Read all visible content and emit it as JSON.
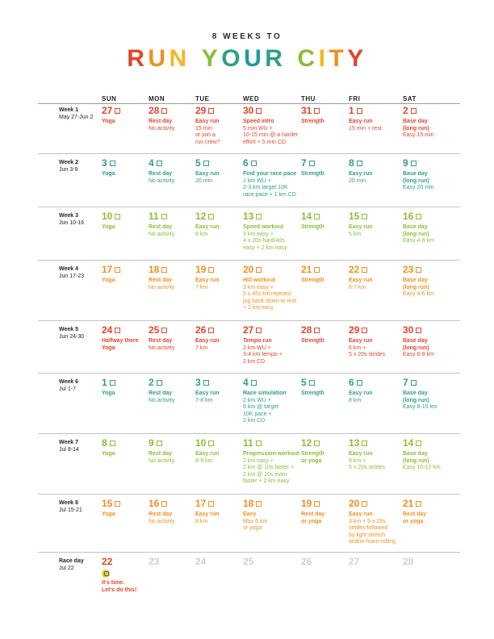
{
  "header": {
    "subtitle": "8 WEEKS TO",
    "title_words": [
      [
        {
          "c": "R",
          "color": "#e2452c"
        },
        {
          "c": "U",
          "color": "#f08f1f"
        },
        {
          "c": "N",
          "color": "#f2b825"
        }
      ],
      [
        {
          "c": "Y",
          "color": "#8bbd35"
        },
        {
          "c": "O",
          "color": "#2f9e88"
        },
        {
          "c": "U",
          "color": "#1e9aa0"
        },
        {
          "c": "R",
          "color": "#2f9e88"
        }
      ],
      [
        {
          "c": "C",
          "color": "#8bbd35"
        },
        {
          "c": "I",
          "color": "#f2b825"
        },
        {
          "c": "T",
          "color": "#f08f1f"
        },
        {
          "c": "Y",
          "color": "#e2452c"
        }
      ]
    ]
  },
  "days": [
    "SUN",
    "MON",
    "TUE",
    "WED",
    "THU",
    "FRI",
    "SAT"
  ],
  "weeks": [
    {
      "label": "Week 1",
      "dates": "May 27-Jun 2",
      "color": "#e2452c",
      "cells": [
        {
          "num": "27",
          "act": "Yoga",
          "det": ""
        },
        {
          "num": "28",
          "act": "Rest day",
          "det": "No activity"
        },
        {
          "num": "29",
          "act": "Easy run",
          "det": "15 min\nor join a\nrun crew?"
        },
        {
          "num": "30",
          "act": "Speed intro",
          "det": "5 min WU +\n10-15 min @ a harder\neffort + 5 min CD"
        },
        {
          "num": "31",
          "act": "Strength",
          "det": ""
        },
        {
          "num": "1",
          "act": "Easy run",
          "det": "15 min + rest"
        },
        {
          "num": "2",
          "act": "Base day\n(long run)",
          "det": "Easy 15 min"
        }
      ]
    },
    {
      "label": "Week 2",
      "dates": "Jun 3-9",
      "color": "#2f9e88",
      "cells": [
        {
          "num": "3",
          "act": "Yoga",
          "det": ""
        },
        {
          "num": "4",
          "act": "Rest day",
          "det": "No activity"
        },
        {
          "num": "5",
          "act": "Easy run",
          "det": "20 min"
        },
        {
          "num": "6",
          "act": "Find your race pace",
          "det": "1 km WU +\n2-3 km target 10K\nrace pace + 1 km CD"
        },
        {
          "num": "7",
          "act": "Strength",
          "det": ""
        },
        {
          "num": "8",
          "act": "Easy run",
          "det": "20 min"
        },
        {
          "num": "9",
          "act": "Base day\n(long run)",
          "det": "Easy 20 min"
        }
      ]
    },
    {
      "label": "Week 3",
      "dates": "Jun 10-16",
      "color": "#8bbd35",
      "cells": [
        {
          "num": "10",
          "act": "Yoga",
          "det": ""
        },
        {
          "num": "11",
          "act": "Rest day",
          "det": "No activity"
        },
        {
          "num": "12",
          "act": "Easy run",
          "det": "6 km"
        },
        {
          "num": "13",
          "act": "Speed workout",
          "det": "3 km easy +\n4 x 20s hard/40s\neasy + 2 km easy"
        },
        {
          "num": "14",
          "act": "Strength",
          "det": ""
        },
        {
          "num": "15",
          "act": "Easy run",
          "det": "5 km"
        },
        {
          "num": "16",
          "act": "Base day\n(long run)",
          "det": "Easy 4-6 km"
        }
      ]
    },
    {
      "label": "Week 4",
      "dates": "Jun 17-23",
      "color": "#f08f1f",
      "cells": [
        {
          "num": "17",
          "act": "Yoga",
          "det": ""
        },
        {
          "num": "18",
          "act": "Rest day",
          "det": "No activity"
        },
        {
          "num": "19",
          "act": "Easy run",
          "det": "7 km"
        },
        {
          "num": "20",
          "act": "Hill workout",
          "det": "3 km easy +\n5 x 45s hill repeats/\njog back down to rest\n+ 2 km easy"
        },
        {
          "num": "21",
          "act": "Strength",
          "det": ""
        },
        {
          "num": "22",
          "act": "Easy run",
          "det": "6-7 km"
        },
        {
          "num": "23",
          "act": "Base day\n(long run)",
          "det": "Easy 4-6 km"
        }
      ]
    },
    {
      "label": "Week 5",
      "dates": "Jun 24-30",
      "color": "#e2452c",
      "cells": [
        {
          "num": "24",
          "act": "Halfway there\nYoga",
          "det": ""
        },
        {
          "num": "25",
          "act": "Rest day",
          "det": "No activity"
        },
        {
          "num": "26",
          "act": "Easy run",
          "det": "7 km"
        },
        {
          "num": "27",
          "act": "Tempo run",
          "det": "2 km WU +\n3-4 km tempo +\n2 km CD"
        },
        {
          "num": "28",
          "act": "Strength",
          "det": ""
        },
        {
          "num": "29",
          "act": "Easy run",
          "det": "6 km +\n5 x 20s strides"
        },
        {
          "num": "30",
          "act": "Base day\n(long run)",
          "det": "Easy 6-8 km"
        }
      ]
    },
    {
      "label": "Week 6",
      "dates": "Jul 1-7",
      "color": "#2f9e88",
      "cells": [
        {
          "num": "1",
          "act": "Yoga",
          "det": ""
        },
        {
          "num": "2",
          "act": "Rest day",
          "det": "No activity"
        },
        {
          "num": "3",
          "act": "Easy run",
          "det": "7-8 km"
        },
        {
          "num": "4",
          "act": "Race simulation",
          "det": "2 km WU +\n6 km @ target\n10K pace +\n2 km CD"
        },
        {
          "num": "5",
          "act": "Strength",
          "det": ""
        },
        {
          "num": "6",
          "act": "Easy run",
          "det": "8 km"
        },
        {
          "num": "7",
          "act": "Base day\n(long run)",
          "det": "Easy 8-10 km"
        }
      ]
    },
    {
      "label": "Week 7",
      "dates": "Jul 8-14",
      "color": "#8bbd35",
      "cells": [
        {
          "num": "8",
          "act": "Yoga",
          "det": ""
        },
        {
          "num": "9",
          "act": "Rest day",
          "det": "No activity"
        },
        {
          "num": "10",
          "act": "Easy run",
          "det": "8-9 km"
        },
        {
          "num": "11",
          "act": "Progression workout",
          "det": "2 km easy +\n2 km @ 10s faster +\n2 km @ 10s even\nfaster + 2 km easy"
        },
        {
          "num": "12",
          "act": "Strength\nor yoga",
          "det": ""
        },
        {
          "num": "13",
          "act": "Easy run",
          "det": "9 km +\n5 x 20s strides"
        },
        {
          "num": "14",
          "act": "Base day\n(long run)",
          "det": "Easy 10-12 km"
        }
      ]
    },
    {
      "label": "Week 8",
      "dates": "Jul 15-21",
      "color": "#f08f1f",
      "cells": [
        {
          "num": "15",
          "act": "Yoga",
          "det": ""
        },
        {
          "num": "16",
          "act": "Rest day",
          "det": "No activity"
        },
        {
          "num": "17",
          "act": "Easy run",
          "det": "8 km"
        },
        {
          "num": "18",
          "act": "Easy",
          "det": "Max 6 km\nor yoga"
        },
        {
          "num": "19",
          "act": "Rest day\nor yoga",
          "det": ""
        },
        {
          "num": "20",
          "act": "Easy run",
          "det": "3 km + 5 x 20s\nstrides followed\nby light stretch\nand/or foam rolling"
        },
        {
          "num": "21",
          "act": "Rest day\nor yoga",
          "det": ""
        }
      ]
    }
  ],
  "race": {
    "label": "Race day",
    "dates": "Jul 22",
    "color": "#e2452c",
    "day_num": "22",
    "icon": "trophy-icon",
    "message": "It's time.\nLet's do this!",
    "other_days": [
      "23",
      "24",
      "25",
      "26",
      "27",
      "28"
    ]
  }
}
